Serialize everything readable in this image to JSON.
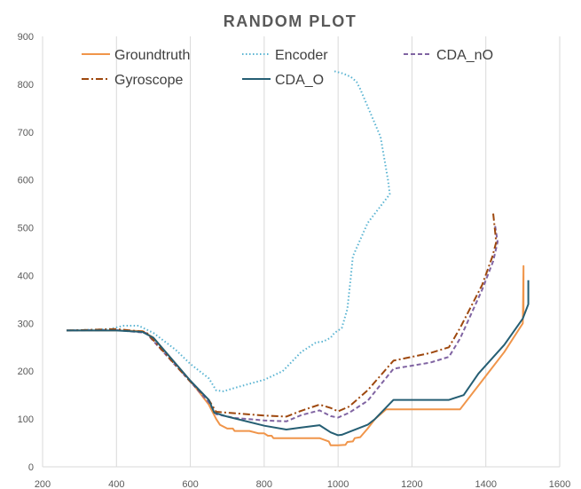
{
  "chart_data": {
    "type": "line",
    "title": "RANDOM PLOT",
    "xlabel": "",
    "ylabel": "",
    "xlim": [
      200,
      1600
    ],
    "ylim": [
      0,
      900
    ],
    "xticks": [
      200,
      400,
      600,
      800,
      1000,
      1200,
      1400,
      1600
    ],
    "yticks": [
      0,
      100,
      200,
      300,
      400,
      500,
      600,
      700,
      800,
      900
    ],
    "grid": "vertical",
    "legend_position": "top",
    "series": [
      {
        "name": "Groundtruth",
        "color": "#F0954A",
        "dash": "solid",
        "points": [
          [
            265,
            285
          ],
          [
            400,
            285
          ],
          [
            470,
            284
          ],
          [
            500,
            270
          ],
          [
            600,
            180
          ],
          [
            650,
            130
          ],
          [
            670,
            100
          ],
          [
            680,
            88
          ],
          [
            700,
            80
          ],
          [
            715,
            80
          ],
          [
            720,
            75
          ],
          [
            760,
            75
          ],
          [
            785,
            70
          ],
          [
            800,
            70
          ],
          [
            810,
            65
          ],
          [
            820,
            65
          ],
          [
            825,
            60
          ],
          [
            880,
            60
          ],
          [
            950,
            60
          ],
          [
            975,
            53
          ],
          [
            980,
            45
          ],
          [
            1000,
            45
          ],
          [
            1020,
            46
          ],
          [
            1025,
            52
          ],
          [
            1040,
            53
          ],
          [
            1045,
            60
          ],
          [
            1060,
            62
          ],
          [
            1080,
            80
          ],
          [
            1100,
            100
          ],
          [
            1130,
            120
          ],
          [
            1200,
            120
          ],
          [
            1330,
            120
          ],
          [
            1400,
            190
          ],
          [
            1450,
            240
          ],
          [
            1500,
            300
          ],
          [
            1502,
            420
          ],
          [
            1502,
            320
          ]
        ]
      },
      {
        "name": "Encoder",
        "color": "#5AB4D2",
        "dash": "dotted",
        "points": [
          [
            265,
            285
          ],
          [
            380,
            288
          ],
          [
            420,
            295
          ],
          [
            460,
            295
          ],
          [
            500,
            280
          ],
          [
            560,
            245
          ],
          [
            600,
            215
          ],
          [
            650,
            185
          ],
          [
            670,
            160
          ],
          [
            690,
            158
          ],
          [
            720,
            165
          ],
          [
            800,
            182
          ],
          [
            850,
            200
          ],
          [
            900,
            240
          ],
          [
            940,
            260
          ],
          [
            960,
            262
          ],
          [
            980,
            270
          ],
          [
            990,
            280
          ],
          [
            1010,
            290
          ],
          [
            1025,
            330
          ],
          [
            1035,
            400
          ],
          [
            1040,
            440
          ],
          [
            1080,
            510
          ],
          [
            1120,
            550
          ],
          [
            1140,
            570
          ],
          [
            1135,
            600
          ],
          [
            1115,
            690
          ],
          [
            1060,
            790
          ],
          [
            1050,
            805
          ],
          [
            1035,
            815
          ],
          [
            1015,
            822
          ],
          [
            990,
            827
          ]
        ]
      },
      {
        "name": "CDA_nO",
        "color": "#8064A2",
        "dash": "dashed",
        "points": [
          [
            265,
            285
          ],
          [
            400,
            286
          ],
          [
            480,
            280
          ],
          [
            600,
            178
          ],
          [
            650,
            135
          ],
          [
            670,
            110
          ],
          [
            720,
            102
          ],
          [
            800,
            97
          ],
          [
            860,
            95
          ],
          [
            900,
            108
          ],
          [
            950,
            118
          ],
          [
            980,
            106
          ],
          [
            1000,
            103
          ],
          [
            1030,
            113
          ],
          [
            1080,
            138
          ],
          [
            1150,
            205
          ],
          [
            1250,
            218
          ],
          [
            1300,
            230
          ],
          [
            1330,
            268
          ],
          [
            1390,
            370
          ],
          [
            1420,
            430
          ],
          [
            1432,
            470
          ],
          [
            1425,
            505
          ]
        ]
      },
      {
        "name": "Gyroscope",
        "color": "#9E480E",
        "dash": "dashdot",
        "points": [
          [
            265,
            285
          ],
          [
            400,
            288
          ],
          [
            480,
            282
          ],
          [
            600,
            178
          ],
          [
            650,
            140
          ],
          [
            670,
            115
          ],
          [
            720,
            112
          ],
          [
            800,
            107
          ],
          [
            860,
            105
          ],
          [
            900,
            117
          ],
          [
            950,
            130
          ],
          [
            980,
            123
          ],
          [
            1000,
            116
          ],
          [
            1030,
            126
          ],
          [
            1080,
            160
          ],
          [
            1150,
            222
          ],
          [
            1250,
            238
          ],
          [
            1300,
            250
          ],
          [
            1330,
            290
          ],
          [
            1390,
            380
          ],
          [
            1418,
            440
          ],
          [
            1428,
            470
          ],
          [
            1420,
            530
          ]
        ]
      },
      {
        "name": "CDA_O",
        "color": "#255E73",
        "dash": "solid",
        "points": [
          [
            265,
            285
          ],
          [
            400,
            285
          ],
          [
            470,
            282
          ],
          [
            500,
            270
          ],
          [
            600,
            180
          ],
          [
            650,
            140
          ],
          [
            665,
            113
          ],
          [
            700,
            105
          ],
          [
            800,
            86
          ],
          [
            860,
            78
          ],
          [
            900,
            82
          ],
          [
            950,
            87
          ],
          [
            980,
            72
          ],
          [
            1000,
            66
          ],
          [
            1010,
            67
          ],
          [
            1030,
            73
          ],
          [
            1080,
            88
          ],
          [
            1100,
            100
          ],
          [
            1150,
            140
          ],
          [
            1200,
            140
          ],
          [
            1300,
            140
          ],
          [
            1340,
            150
          ],
          [
            1380,
            195
          ],
          [
            1450,
            255
          ],
          [
            1500,
            310
          ],
          [
            1515,
            340
          ],
          [
            1515,
            390
          ]
        ]
      }
    ]
  }
}
